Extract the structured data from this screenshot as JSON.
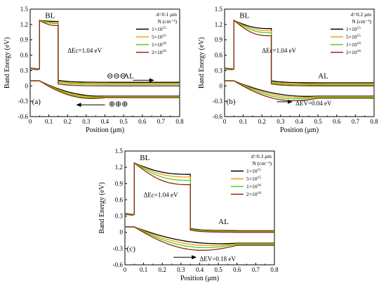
{
  "chart_data": [
    {
      "type": "line",
      "panel": "(a)",
      "ylabel": "Band Energy (eV)",
      "xlabel": "Position (μm)",
      "xlim": [
        0,
        0.8
      ],
      "ylim": [
        -0.6,
        1.5
      ],
      "xticks": [
        "0",
        "0.1",
        "0.2",
        "0.3",
        "0.4",
        "0.5",
        "0.6",
        "0.7",
        "0.8"
      ],
      "yticks": [
        "-0.6",
        "-0.3",
        "0",
        "0.3",
        "0.6",
        "0.9",
        "1.2",
        "1.5"
      ],
      "legend_title": "d=0.1 μm",
      "legend_unit": "N (cm⁻³)",
      "legend_position": "top-right",
      "annotations": {
        "bl": "BL",
        "al": "AL",
        "dec": "ΔEc=1.04 eV",
        "electrons": "⊖⊖⊖",
        "holes": "⊕⊕⊕"
      },
      "bl_edges": [
        0.05,
        0.15
      ],
      "series": [
        {
          "name": "1×10^15",
          "color": "#000000",
          "ec_bl": [
            1.28,
            1.26
          ],
          "ec_al": 0.07,
          "ev_start": 0.1,
          "ev_al": -0.2
        },
        {
          "name": "5×10^15",
          "color": "#f0a000",
          "ec_bl": [
            1.28,
            1.24
          ],
          "ec_al": 0.05,
          "ev_start": 0.1,
          "ev_al": -0.21
        },
        {
          "name": "1×10^16",
          "color": "#55cc22",
          "ec_bl": [
            1.28,
            1.22
          ],
          "ec_al": 0.03,
          "ev_start": 0.1,
          "ev_al": -0.22
        },
        {
          "name": "2×10^16",
          "color": "#8b2a0f",
          "ec_bl": [
            1.28,
            1.18
          ],
          "ec_al": 0.0,
          "ev_start": 0.1,
          "ev_al": -0.23
        }
      ]
    },
    {
      "type": "line",
      "panel": "(b)",
      "ylabel": "Band Energy (eV)",
      "xlabel": "Position (μm)",
      "xlim": [
        0,
        0.8
      ],
      "ylim": [
        -0.6,
        1.5
      ],
      "xticks": [
        "0",
        "0.1",
        "0.2",
        "0.3",
        "0.4",
        "0.5",
        "0.6",
        "0.7",
        "0.8"
      ],
      "yticks": [
        "-0.6",
        "-0.3",
        "0",
        "0.3",
        "0.6",
        "0.9",
        "1.2",
        "1.5"
      ],
      "legend_title": "d=0.2 μm",
      "legend_unit": "N (cm⁻³)",
      "legend_position": "top-right",
      "annotations": {
        "bl": "BL",
        "al": "AL",
        "dec": "ΔEc=1.04 eV",
        "dev": "ΔEV=0.04 eV"
      },
      "bl_edges": [
        0.05,
        0.25
      ],
      "series": [
        {
          "name": "1×10^15",
          "color": "#000000",
          "ec_bl": [
            1.28,
            1.12
          ],
          "ec_al": 0.06,
          "ev_start": 0.1,
          "ev_al": -0.2
        },
        {
          "name": "5×10^15",
          "color": "#f0a000",
          "ec_bl": [
            1.28,
            1.08
          ],
          "ec_al": 0.04,
          "ev_start": 0.1,
          "ev_al": -0.21
        },
        {
          "name": "1×10^16",
          "color": "#55cc22",
          "ec_bl": [
            1.28,
            1.04
          ],
          "ec_al": 0.02,
          "ev_start": 0.1,
          "ev_al": -0.22
        },
        {
          "name": "2×10^16",
          "color": "#8b2a0f",
          "ec_bl": [
            1.28,
            0.98
          ],
          "ec_al": 0.0,
          "ev_start": 0.1,
          "ev_al": -0.24
        }
      ]
    },
    {
      "type": "line",
      "panel": "(c)",
      "ylabel": "Band Energy (eV)",
      "xlabel": "Position (μm)",
      "xlim": [
        0,
        0.8
      ],
      "ylim": [
        -0.6,
        1.5
      ],
      "xticks": [
        "0",
        "0.1",
        "0.2",
        "0.3",
        "0.4",
        "0.5",
        "0.6",
        "0.7",
        "0.8"
      ],
      "yticks": [
        "-0.6",
        "-0.3",
        "0",
        "0.3",
        "0.6",
        "0.9",
        "1.2",
        "1.5"
      ],
      "legend_title": "d=0.3 μm",
      "legend_unit": "N (cm⁻³)",
      "legend_position": "top-right",
      "annotations": {
        "bl": "BL",
        "al": "AL",
        "dec": "ΔEc=1.04 eV",
        "dev": "ΔEV=0.18 eV"
      },
      "bl_edges": [
        0.05,
        0.35
      ],
      "series": [
        {
          "name": "1×10^15",
          "color": "#000000",
          "ec_bl": [
            1.28,
            1.07
          ],
          "ec_al": 0.03,
          "ev_start": 0.1,
          "ev_al": -0.2
        },
        {
          "name": "5×10^15",
          "color": "#f0a000",
          "ec_bl": [
            1.28,
            1.02
          ],
          "ec_al": 0.02,
          "ev_start": 0.1,
          "ev_al": -0.21
        },
        {
          "name": "1×10^16",
          "color": "#55cc22",
          "ec_bl": [
            1.28,
            0.96
          ],
          "ec_al": 0.01,
          "ev_start": 0.1,
          "ev_al": -0.22
        },
        {
          "name": "2×10^16",
          "color": "#8b2a0f",
          "ec_bl": [
            1.28,
            0.88
          ],
          "ec_al": 0.0,
          "ev_start": 0.1,
          "ev_al": -0.24
        }
      ]
    }
  ]
}
